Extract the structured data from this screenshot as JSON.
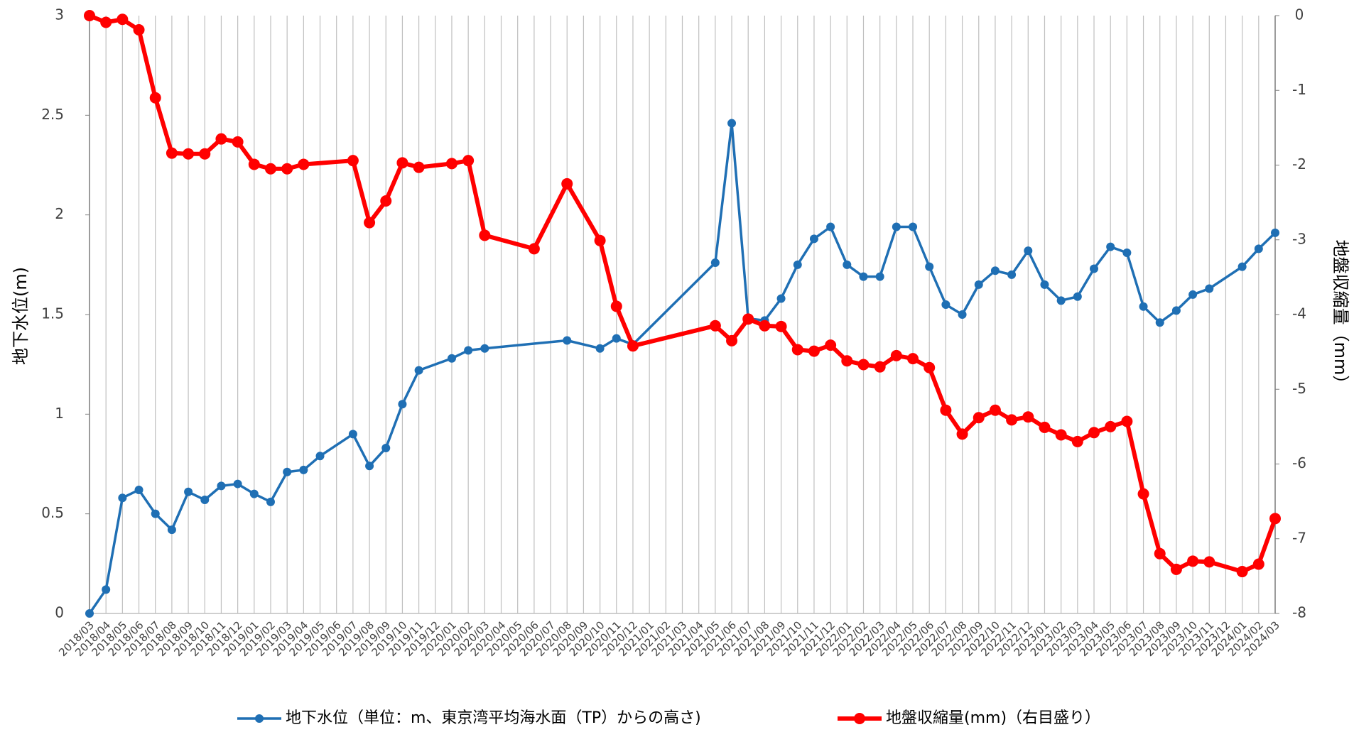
{
  "chart_data": {
    "type": "line",
    "y_label": "地下水位(m)",
    "y2_label": "地盤収縮量（mm）",
    "categories": [
      "2018/03",
      "2018/04",
      "2018/05",
      "2018/06",
      "2018/07",
      "2018/08",
      "2018/09",
      "2018/10",
      "2018/11",
      "2018/12",
      "2019/01",
      "2019/02",
      "2019/03",
      "2019/04",
      "2019/05",
      "2019/06",
      "2019/07",
      "2019/08",
      "2019/09",
      "2019/10",
      "2019/11",
      "2019/12",
      "2020/01",
      "2020/02",
      "2020/03",
      "2020/04",
      "2020/05",
      "2020/06",
      "2020/07",
      "2020/08",
      "2020/09",
      "2020/10",
      "2020/11",
      "2020/12",
      "2021/01",
      "2021/02",
      "2021/03",
      "2021/04",
      "2021/05",
      "2021/06",
      "2021/07",
      "2021/08",
      "2021/09",
      "2021/10",
      "2021/11",
      "2021/12",
      "2022/01",
      "2022/02",
      "2022/03",
      "2022/04",
      "2022/05",
      "2022/06",
      "2022/07",
      "2022/08",
      "2022/09",
      "2022/10",
      "2022/11",
      "2022/12",
      "2023/01",
      "2023/02",
      "2023/03",
      "2023/04",
      "2023/05",
      "2023/06",
      "2023/07",
      "2023/08",
      "2023/09",
      "2023/10",
      "2023/11",
      "2023/12",
      "2024/01",
      "2024/02",
      "2024/03"
    ],
    "series": [
      {
        "name": "地下水位（単位：m、東京湾平均海水面（TP）からの高さ)",
        "color": "#1f6fb4",
        "axis": "y",
        "values": [
          0,
          0.12,
          0.58,
          0.62,
          0.5,
          0.42,
          0.61,
          0.57,
          0.64,
          0.65,
          0.6,
          0.56,
          0.71,
          0.72,
          0.79,
          null,
          0.9,
          0.74,
          0.83,
          1.05,
          1.22,
          null,
          1.28,
          1.32,
          1.33,
          null,
          null,
          null,
          null,
          1.37,
          null,
          1.33,
          1.38,
          1.35,
          null,
          null,
          null,
          null,
          1.76,
          2.46,
          1.48,
          1.47,
          1.58,
          1.75,
          1.88,
          1.94,
          1.75,
          1.69,
          1.69,
          1.94,
          1.94,
          1.74,
          1.55,
          1.5,
          1.65,
          1.72,
          1.7,
          1.82,
          1.65,
          1.57,
          1.59,
          1.73,
          1.84,
          1.81,
          1.54,
          1.46,
          1.52,
          1.6,
          1.63,
          null,
          1.74,
          1.83,
          1.91
        ]
      },
      {
        "name": "地盤収縮量(mm)（右目盛り）",
        "color": "#ff0000",
        "axis": "y2",
        "values": [
          0,
          -0.09,
          -0.05,
          -0.19,
          -1.1,
          -1.84,
          -1.85,
          -1.85,
          -1.65,
          -1.69,
          -1.99,
          -2.05,
          -2.05,
          -1.99,
          null,
          null,
          -1.94,
          -2.77,
          -2.48,
          -1.97,
          -2.03,
          null,
          -1.98,
          -1.94,
          -2.94,
          null,
          null,
          -3.12,
          null,
          -2.25,
          null,
          -3.01,
          -3.89,
          -4.42,
          null,
          null,
          null,
          null,
          -4.15,
          -4.35,
          -4.06,
          -4.15,
          -4.16,
          -4.47,
          -4.49,
          -4.41,
          -4.62,
          -4.67,
          -4.7,
          -4.55,
          -4.59,
          -4.71,
          -5.28,
          -5.6,
          -5.38,
          -5.28,
          -5.41,
          -5.37,
          -5.51,
          -5.61,
          -5.7,
          -5.58,
          -5.5,
          -5.43,
          -6.4,
          -7.2,
          -7.41,
          -7.3,
          -7.31,
          null,
          -7.44,
          -7.34,
          -6.73
        ]
      }
    ],
    "ylim": [
      0,
      3
    ],
    "yticks": [
      0,
      0.5,
      1,
      1.5,
      2,
      2.5,
      3
    ],
    "y2lim": [
      -8,
      0
    ],
    "y2ticks": [
      -8,
      -7,
      -6,
      -5,
      -4,
      -3,
      -2,
      -1,
      0
    ],
    "grid": "x",
    "span_gaps": true,
    "legend": "bottom"
  }
}
